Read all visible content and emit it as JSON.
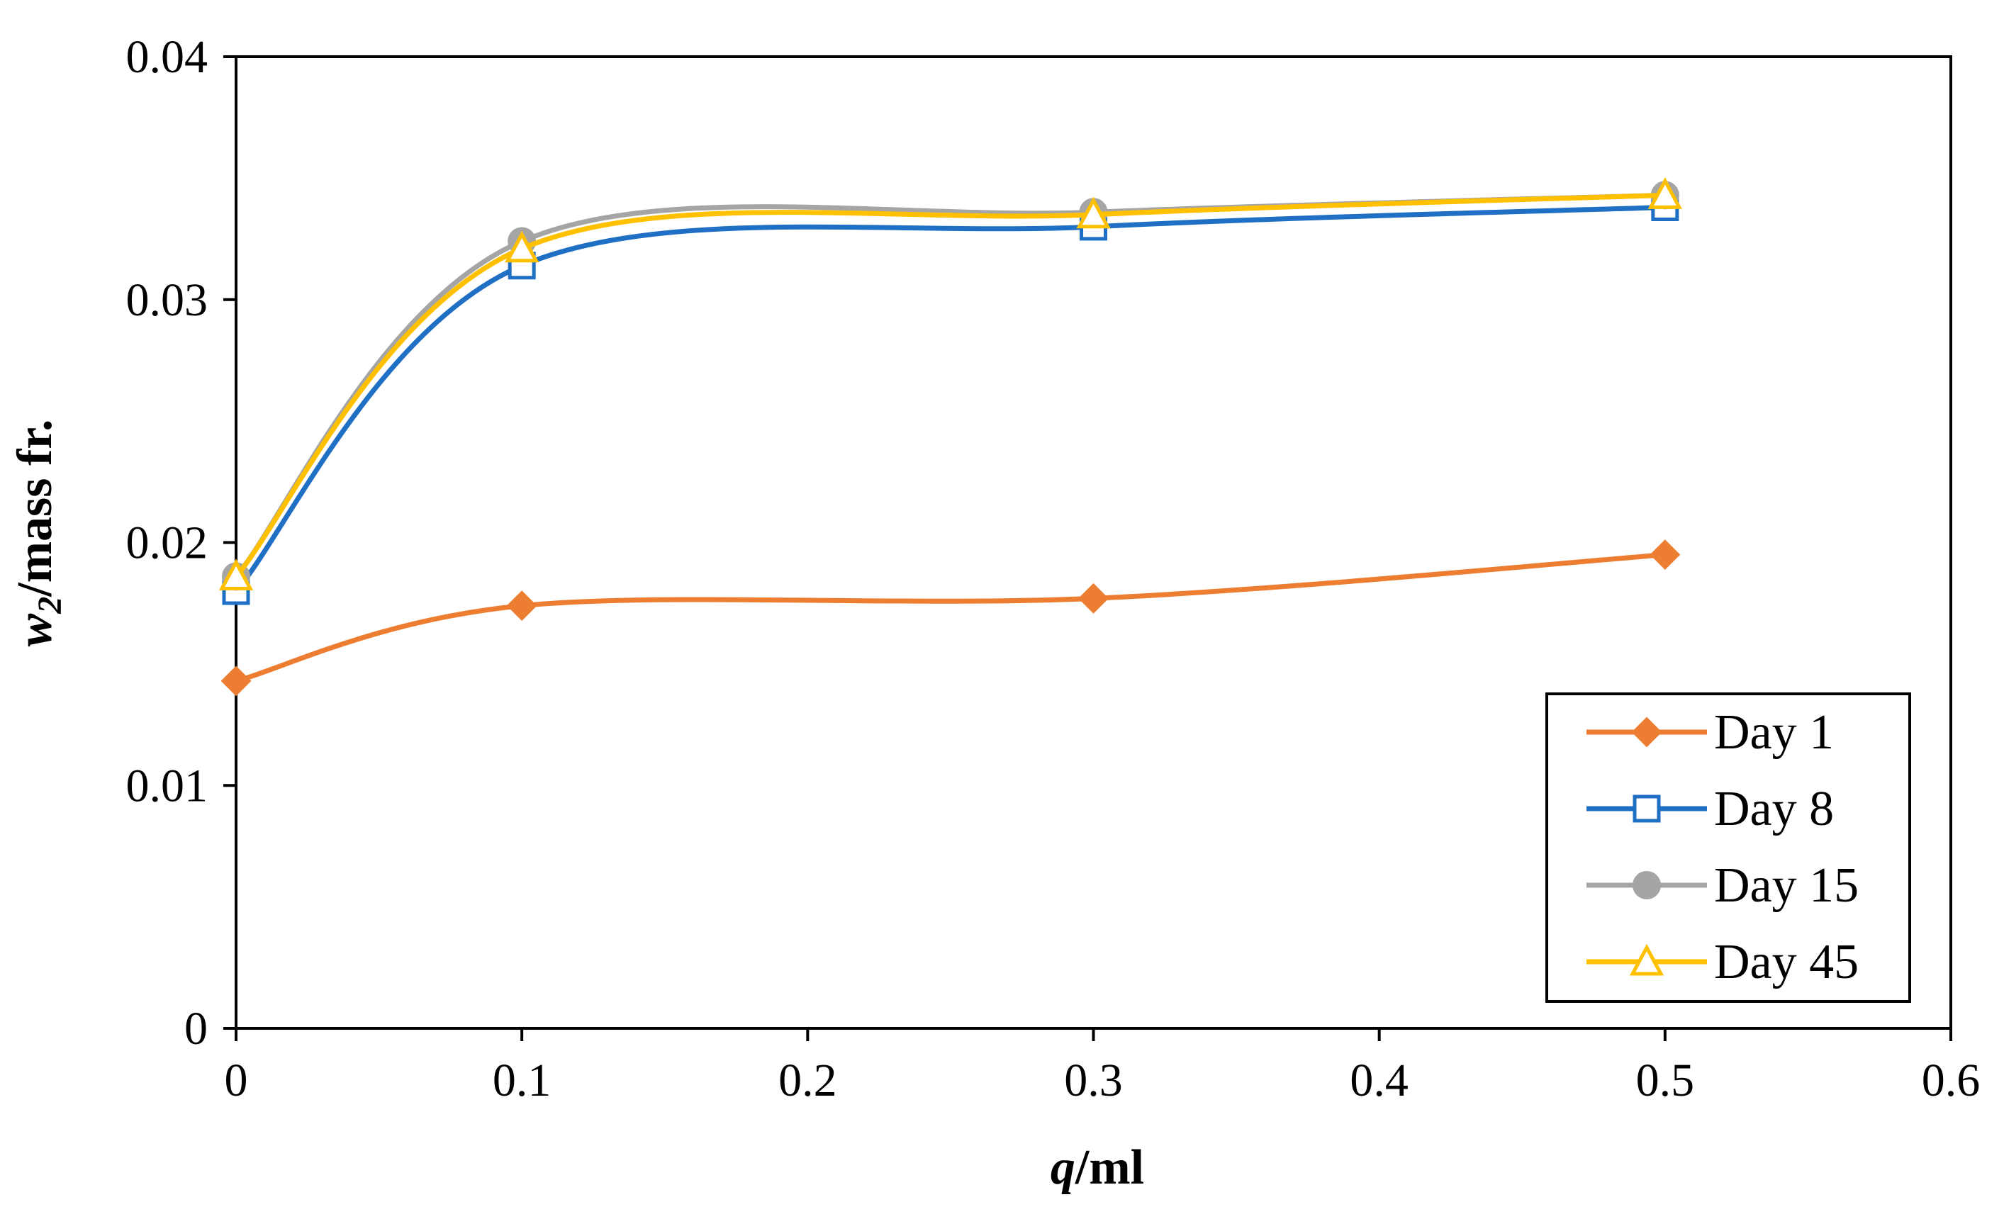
{
  "chart_data": {
    "type": "line",
    "title": "",
    "xlabel": {
      "var": "q",
      "unit": "/ml"
    },
    "ylabel": {
      "var": "w",
      "sub": "2",
      "unit": "/mass fr."
    },
    "xlim": [
      0,
      0.6
    ],
    "ylim": [
      0,
      0.04
    ],
    "xticks": [
      "0",
      "0.1",
      "0.2",
      "0.3",
      "0.4",
      "0.5",
      "0.6"
    ],
    "yticks": [
      "0",
      "0.01",
      "0.02",
      "0.03",
      "0.04"
    ],
    "grid": false,
    "smooth": true,
    "legend_position": "bottom-right",
    "series": [
      {
        "name": "Day  1",
        "color": "#ED7D31",
        "marker": "diamond",
        "x": [
          0,
          0.1,
          0.3,
          0.5
        ],
        "y": [
          0.0143,
          0.0174,
          0.0177,
          0.0195
        ]
      },
      {
        "name": "Day  8",
        "color": "#1F6FC5",
        "marker": "square-open",
        "x": [
          0,
          0.1,
          0.3,
          0.5
        ],
        "y": [
          0.018,
          0.0314,
          0.033,
          0.0338
        ]
      },
      {
        "name": "Day  15",
        "color": "#A5A5A5",
        "marker": "circle",
        "x": [
          0,
          0.1,
          0.3,
          0.5
        ],
        "y": [
          0.0186,
          0.0324,
          0.0336,
          0.0343
        ]
      },
      {
        "name": "Day  45",
        "color": "#FFC000",
        "marker": "triangle-open",
        "x": [
          0,
          0.1,
          0.3,
          0.5
        ],
        "y": [
          0.0186,
          0.0321,
          0.0335,
          0.0343
        ]
      }
    ]
  }
}
